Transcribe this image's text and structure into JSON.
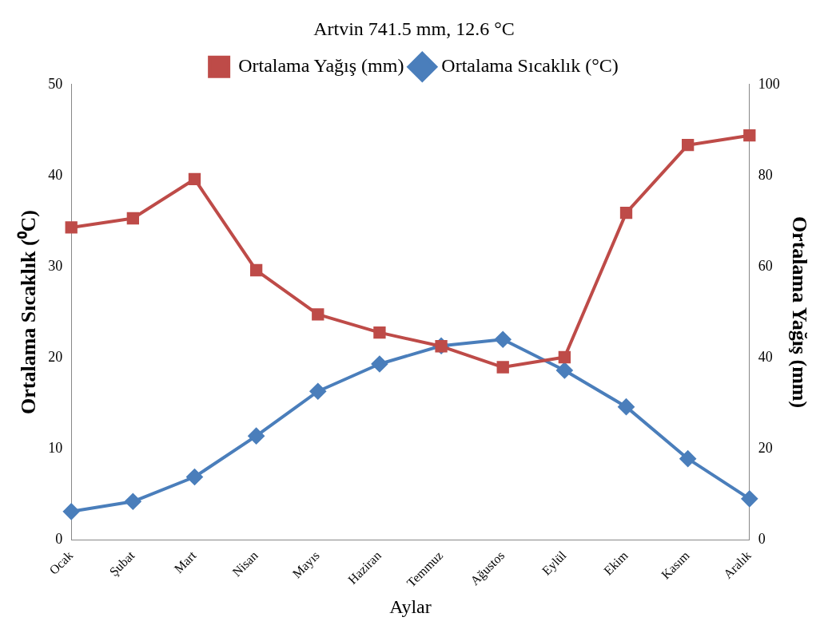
{
  "chart_data": {
    "type": "line",
    "title": "Artvin 741.5 mm, 12.6 °C",
    "xlabel": "Aylar",
    "ylabel": "Ortalama Sıcaklık (⁰C)",
    "y2label": "Ortalama Yağış (mm)",
    "categories": [
      "Ocak",
      "Şubat",
      "Mart",
      "Nisan",
      "Mayıs",
      "Haziran",
      "Temmuz",
      "Ağustos",
      "Eylül",
      "Ekim",
      "Kasım",
      "Aralık"
    ],
    "series": [
      {
        "name": "Ortalama Sıcaklık (°C)",
        "color": "#4a7ebb",
        "marker": "diamond",
        "values": [
          3.1,
          4.2,
          6.9,
          11.4,
          16.3,
          19.3,
          21.3,
          22.0,
          18.6,
          14.6,
          8.9,
          4.5
        ]
      },
      {
        "name": "Ortalama Yağış (mm)",
        "color": "#be4b48",
        "marker": "square",
        "axis": "y2",
        "values": [
          68.6,
          70.6,
          79.2,
          59.2,
          49.5,
          45.5,
          42.5,
          37.9,
          40.1,
          71.8,
          86.7,
          88.8
        ]
      }
    ],
    "ylim": [
      0,
      50
    ],
    "yticks": [
      0,
      10,
      20,
      30,
      40,
      50
    ],
    "y2lim": [
      0,
      100
    ],
    "y2ticks": [
      0,
      20,
      40,
      60,
      80,
      100
    ],
    "grid": false,
    "legend": "top"
  }
}
